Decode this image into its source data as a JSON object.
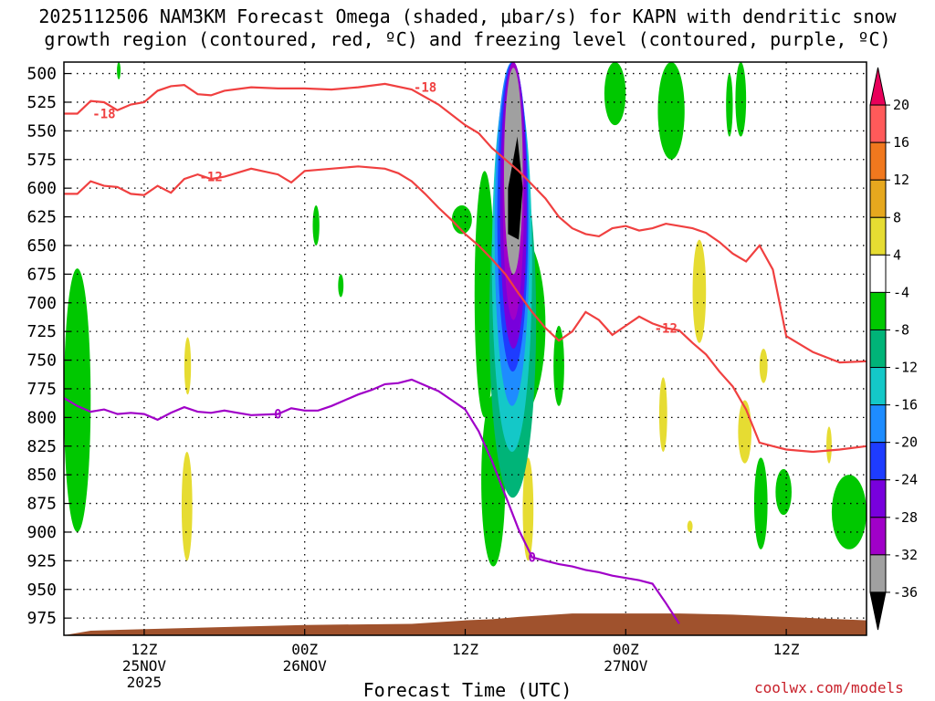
{
  "title": {
    "line1": "2025112506 NAM3KM Forecast Omega (shaded, μbar/s) for KAPN with dendritic snow",
    "line2": "growth region (contoured, red, ºC) and freezing level (contoured, purple, ºC)"
  },
  "credit": "coolwx.com/models",
  "chart_data": {
    "type": "heatmap",
    "title": "2025112506 NAM3KM Forecast Omega (shaded, μbar/s) for KAPN with dendritic snow growth region (contoured, red, ºC) and freezing level (contoured, purple, ºC)",
    "xlabel": "Forecast Time (UTC)",
    "ylabel": "",
    "x_range_hours": [
      6,
      66
    ],
    "x_ticks": [
      {
        "hour": 12,
        "label": [
          "12Z",
          "25NOV",
          "2025"
        ]
      },
      {
        "hour": 24,
        "label": [
          "00Z",
          "26NOV"
        ]
      },
      {
        "hour": 36,
        "label": [
          "12Z"
        ]
      },
      {
        "hour": 48,
        "label": [
          "00Z",
          "27NOV"
        ]
      },
      {
        "hour": 60,
        "label": [
          "12Z"
        ]
      }
    ],
    "y_scale": "pressure (mb), inverted",
    "y_range": [
      490,
      990
    ],
    "y_ticks": [
      500,
      525,
      550,
      575,
      600,
      625,
      650,
      675,
      700,
      725,
      750,
      775,
      800,
      825,
      850,
      875,
      900,
      925,
      950,
      975
    ],
    "grid": true,
    "colorbar": {
      "labels": [
        "20",
        "16",
        "12",
        "8",
        "4",
        "-4",
        "-8",
        "-12",
        "-16",
        "-20",
        "-24",
        "-28",
        "-32",
        "-36"
      ],
      "colors": [
        "#e8005a",
        "#ff5a5a",
        "#f0781e",
        "#e6a81e",
        "#e6dc32",
        "#ffffff",
        "#00c800",
        "#00b478",
        "#14c8c8",
        "#1e8cff",
        "#1e3cff",
        "#7800dc",
        "#a000c8",
        "#a0a0a0",
        "#000000"
      ]
    },
    "contours": [
      {
        "label": "-18",
        "color": "#f04040",
        "points": [
          [
            6,
            535
          ],
          [
            7,
            535
          ],
          [
            8,
            524
          ],
          [
            9,
            525
          ],
          [
            10,
            532
          ],
          [
            11,
            527
          ],
          [
            12,
            525
          ],
          [
            13,
            515
          ],
          [
            14,
            511
          ],
          [
            15,
            510
          ],
          [
            16,
            518
          ],
          [
            17,
            519
          ],
          [
            18,
            515
          ],
          [
            20,
            512
          ],
          [
            22,
            513
          ],
          [
            24,
            513
          ],
          [
            26,
            514
          ],
          [
            28,
            512
          ],
          [
            30,
            509
          ],
          [
            32,
            514
          ],
          [
            34,
            527
          ],
          [
            36,
            545
          ],
          [
            37,
            552
          ],
          [
            38,
            565
          ],
          [
            39,
            575
          ],
          [
            40,
            585
          ],
          [
            41,
            597
          ],
          [
            42,
            609
          ],
          [
            43,
            625
          ],
          [
            44,
            635
          ],
          [
            45,
            640
          ],
          [
            46,
            642
          ],
          [
            47,
            635
          ],
          [
            48,
            633
          ],
          [
            49,
            637
          ],
          [
            50,
            635
          ],
          [
            51,
            631
          ],
          [
            52,
            633
          ],
          [
            53,
            635
          ],
          [
            54,
            639
          ],
          [
            55,
            647
          ],
          [
            56,
            657
          ],
          [
            57,
            664
          ],
          [
            58,
            650
          ],
          [
            59,
            671
          ],
          [
            60,
            729
          ],
          [
            62,
            743
          ],
          [
            64,
            752
          ],
          [
            66,
            751
          ]
        ]
      },
      {
        "label": "-12",
        "color": "#f04040",
        "points": [
          [
            6,
            605
          ],
          [
            7,
            605
          ],
          [
            8,
            594
          ],
          [
            9,
            598
          ],
          [
            10,
            599
          ],
          [
            11,
            605
          ],
          [
            12,
            606
          ],
          [
            13,
            598
          ],
          [
            14,
            604
          ],
          [
            15,
            592
          ],
          [
            16,
            588
          ],
          [
            17,
            592
          ],
          [
            18,
            590
          ],
          [
            20,
            583
          ],
          [
            22,
            588
          ],
          [
            23,
            595
          ],
          [
            24,
            585
          ],
          [
            26,
            583
          ],
          [
            28,
            581
          ],
          [
            30,
            583
          ],
          [
            31,
            587
          ],
          [
            32,
            594
          ],
          [
            33,
            605
          ],
          [
            34,
            617
          ],
          [
            35,
            628
          ],
          [
            36,
            640
          ],
          [
            37,
            650
          ],
          [
            38,
            662
          ],
          [
            39,
            675
          ],
          [
            40,
            692
          ],
          [
            41,
            708
          ],
          [
            42,
            722
          ],
          [
            43,
            733
          ],
          [
            44,
            725
          ],
          [
            45,
            708
          ],
          [
            46,
            715
          ],
          [
            47,
            728
          ],
          [
            48,
            720
          ],
          [
            49,
            712
          ],
          [
            50,
            718
          ],
          [
            51,
            722
          ],
          [
            52,
            724
          ],
          [
            53,
            735
          ],
          [
            54,
            745
          ],
          [
            55,
            760
          ],
          [
            56,
            773
          ],
          [
            57,
            793
          ],
          [
            58,
            822
          ],
          [
            59,
            825
          ],
          [
            60,
            828
          ],
          [
            62,
            830
          ],
          [
            64,
            828
          ],
          [
            66,
            825
          ]
        ]
      },
      {
        "label": "0",
        "color": "#a000c8",
        "points": [
          [
            6,
            783
          ],
          [
            7,
            790
          ],
          [
            8,
            795
          ],
          [
            9,
            793
          ],
          [
            10,
            797
          ],
          [
            11,
            796
          ],
          [
            12,
            797
          ],
          [
            13,
            802
          ],
          [
            14,
            796
          ],
          [
            15,
            791
          ],
          [
            16,
            795
          ],
          [
            17,
            796
          ],
          [
            18,
            794
          ],
          [
            20,
            798
          ],
          [
            22,
            797
          ],
          [
            23,
            792
          ],
          [
            24,
            794
          ],
          [
            25,
            794
          ],
          [
            26,
            790
          ],
          [
            27,
            785
          ],
          [
            28,
            780
          ],
          [
            29,
            776
          ],
          [
            30,
            771
          ],
          [
            31,
            770
          ],
          [
            32,
            767
          ],
          [
            33,
            772
          ],
          [
            34,
            777
          ],
          [
            35,
            785
          ],
          [
            36,
            793
          ],
          [
            37,
            812
          ],
          [
            38,
            838
          ],
          [
            39,
            868
          ],
          [
            40,
            898
          ],
          [
            41,
            922
          ],
          [
            42,
            925
          ],
          [
            43,
            928
          ],
          [
            44,
            930
          ],
          [
            45,
            933
          ],
          [
            46,
            935
          ],
          [
            47,
            938
          ],
          [
            48,
            940
          ],
          [
            49,
            942
          ],
          [
            50,
            945
          ],
          [
            51,
            962
          ],
          [
            52,
            980
          ]
        ]
      }
    ],
    "regions": [
      {
        "level": "-36",
        "desc": "strong upward motion core",
        "hours": [
          39.2,
          40.2
        ],
        "pressure": [
          555,
          645
        ]
      }
    ],
    "terrain_color": "#a0522d"
  }
}
